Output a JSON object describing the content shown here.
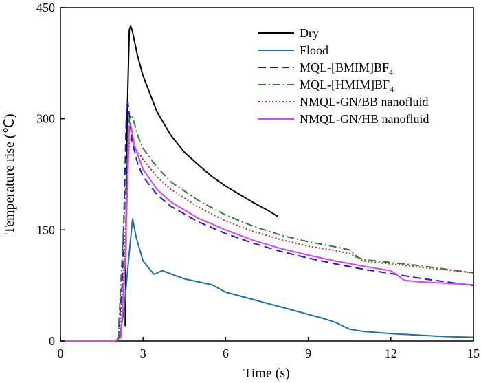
{
  "chart_data": {
    "type": "line",
    "xlabel": "Time (s)",
    "ylabel": "Temperature rise (℃)",
    "xlim": [
      0,
      15
    ],
    "ylim": [
      0,
      450
    ],
    "xticks": [
      0,
      3,
      6,
      9,
      12,
      15
    ],
    "yticks": [
      0,
      150,
      300,
      450
    ],
    "x_tick_labels": [
      "0",
      "3",
      "6",
      "9",
      "12",
      "15"
    ],
    "y_tick_labels": [
      "0",
      "150",
      "300",
      "450"
    ],
    "grid": false,
    "legend_position": "top-right",
    "series": [
      {
        "name": "Dry",
        "legend_base": "Dry",
        "color": "#000000",
        "dash": "solid",
        "x": [
          2.35,
          2.42,
          2.5,
          2.55,
          2.6,
          2.8,
          3.0,
          3.5,
          4.0,
          4.5,
          5.0,
          5.5,
          6.0,
          6.5,
          7.0,
          7.5,
          7.9
        ],
        "y": [
          20,
          300,
          420,
          425,
          420,
          385,
          358,
          310,
          278,
          255,
          238,
          222,
          209,
          198,
          187,
          177,
          168
        ]
      },
      {
        "name": "Flood",
        "legend_base": "Flood",
        "color": "#1f6fb0",
        "dash": "solid",
        "x": [
          0,
          2.0,
          2.15,
          2.3,
          2.5,
          2.62,
          2.75,
          3.0,
          3.4,
          3.7,
          3.9,
          4.5,
          5.5,
          6.0,
          7.0,
          8.0,
          9.0,
          9.5,
          10.0,
          10.5,
          11.0,
          12.0,
          13.0,
          14.0,
          15.0
        ],
        "y": [
          0,
          0,
          5,
          40,
          120,
          165,
          140,
          108,
          90,
          95,
          92,
          84,
          76,
          66,
          56,
          46,
          36,
          31,
          25,
          16,
          13,
          10,
          8,
          6,
          5
        ]
      },
      {
        "name": "MQL-[BMIM]BF4",
        "legend_base": "MQL-[BMIM]BF",
        "legend_sub": "4",
        "color": "#1a1adb",
        "dash": "11,6",
        "x": [
          0,
          2.0,
          2.1,
          2.25,
          2.4,
          2.45,
          2.6,
          2.8,
          3.0,
          3.5,
          4.0,
          5.0,
          6.0,
          7.0,
          8.0,
          9.0,
          10.0,
          11.0,
          12.0,
          13.0,
          14.0,
          15.0
        ],
        "y": [
          0,
          0,
          5,
          80,
          318,
          322,
          270,
          240,
          222,
          198,
          182,
          161,
          145,
          132,
          121,
          112,
          104,
          97,
          91,
          85,
          80,
          75
        ]
      },
      {
        "name": "MQL-[HMIM]BF4",
        "legend_base": "MQL-[HMIM]BF",
        "legend_sub": "4",
        "color": "#2e7d32",
        "dash": "11,4,2,4",
        "x": [
          0,
          2.0,
          2.1,
          2.25,
          2.5,
          2.6,
          2.8,
          3.0,
          3.5,
          4.0,
          5.0,
          6.0,
          7.0,
          8.0,
          9.0,
          10.0,
          10.5,
          10.8,
          11.0,
          12.0,
          13.0,
          14.0,
          15.0
        ],
        "y": [
          0,
          0,
          5,
          120,
          300,
          305,
          278,
          260,
          235,
          215,
          190,
          170,
          155,
          143,
          134,
          127,
          123,
          113,
          110,
          106,
          102,
          97,
          92
        ]
      },
      {
        "name": "NMQL-GN/BB nanofluid",
        "legend_base": "NMQL-GN/BB nanofluid",
        "color": "#c62828",
        "dash": "2,3",
        "x": [
          0,
          2.0,
          2.15,
          2.3,
          2.5,
          2.55,
          2.7,
          3.0,
          3.5,
          4.0,
          5.0,
          6.0,
          7.0,
          8.0,
          9.0,
          10.0,
          10.5,
          10.8,
          11.0,
          12.0,
          13.0,
          14.0,
          15.0
        ],
        "y": [
          0,
          0,
          5,
          100,
          270,
          275,
          262,
          245,
          222,
          205,
          181,
          162,
          148,
          137,
          128,
          122,
          118,
          112,
          108,
          104,
          100,
          96,
          92
        ]
      },
      {
        "name": "NMQL-GN/HB nanofluid",
        "legend_base": "NMQL-GN/HB nanofluid",
        "color": "#e040fb",
        "dash": "solid",
        "x": [
          0,
          2.0,
          2.2,
          2.35,
          2.5,
          2.55,
          2.7,
          3.0,
          3.5,
          4.0,
          5.0,
          6.0,
          7.0,
          8.0,
          9.0,
          10.0,
          11.0,
          12.0,
          12.5,
          13.0,
          14.0,
          15.0
        ],
        "y": [
          0,
          0,
          5,
          110,
          290,
          292,
          262,
          232,
          205,
          188,
          166,
          150,
          136,
          125,
          116,
          108,
          101,
          95,
          82,
          80,
          78,
          76
        ]
      }
    ]
  }
}
